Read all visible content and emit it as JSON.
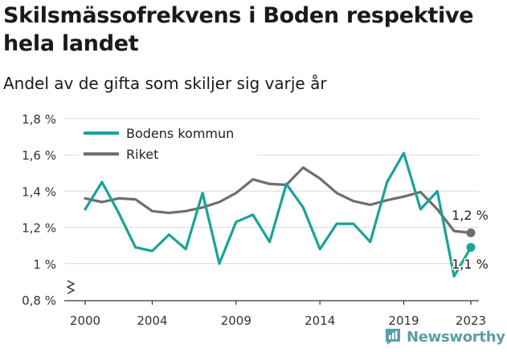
{
  "title": "Skilsmässofrekvens i Boden respektive hela landet",
  "subtitle": "Andel av de gifta som skiljer sig varje år",
  "brand": {
    "name": "Newsworthy"
  },
  "colors": {
    "boden": "#1aa29a",
    "riket": "#6e6e6e",
    "grid": "#d9d9d9",
    "axis": "#333333"
  },
  "chart_data": {
    "type": "line",
    "ylim": [
      0.8,
      1.8
    ],
    "xlim": [
      2000,
      2023
    ],
    "y_ticks": [
      0.8,
      1.0,
      1.2,
      1.4,
      1.6,
      1.8
    ],
    "y_tick_labels": [
      "0,8 %",
      "1 %",
      "1,2 %",
      "1,4 %",
      "1,6 %",
      "1,8 %"
    ],
    "x_ticks": [
      2000,
      2004,
      2009,
      2014,
      2019,
      2023
    ],
    "x_tick_labels": [
      "2000",
      "2004",
      "2009",
      "2014",
      "2019",
      "2023"
    ],
    "legend_position": "top-left",
    "grid": true,
    "series": [
      {
        "name": "Bodens kommun",
        "color_key": "boden",
        "x": [
          2000,
          2001,
          2002,
          2003,
          2004,
          2005,
          2006,
          2007,
          2008,
          2009,
          2010,
          2011,
          2012,
          2013,
          2014,
          2015,
          2016,
          2017,
          2018,
          2019,
          2020,
          2021,
          2022,
          2023
        ],
        "y": [
          1.3,
          1.45,
          1.28,
          1.09,
          1.07,
          1.16,
          1.08,
          1.39,
          1.0,
          1.23,
          1.27,
          1.12,
          1.44,
          1.31,
          1.08,
          1.22,
          1.22,
          1.12,
          1.45,
          1.61,
          1.3,
          1.4,
          0.93,
          1.09
        ],
        "end_label": "1,1 %"
      },
      {
        "name": "Riket",
        "color_key": "riket",
        "x": [
          2000,
          2001,
          2002,
          2003,
          2004,
          2005,
          2006,
          2007,
          2008,
          2009,
          2010,
          2011,
          2012,
          2013,
          2014,
          2015,
          2016,
          2017,
          2018,
          2019,
          2020,
          2021,
          2022,
          2023
        ],
        "y": [
          1.36,
          1.34,
          1.36,
          1.355,
          1.29,
          1.28,
          1.29,
          1.31,
          1.34,
          1.39,
          1.465,
          1.44,
          1.435,
          1.53,
          1.47,
          1.39,
          1.345,
          1.325,
          1.35,
          1.37,
          1.395,
          1.3,
          1.18,
          1.17
        ],
        "end_label": "1,2 %"
      }
    ]
  }
}
